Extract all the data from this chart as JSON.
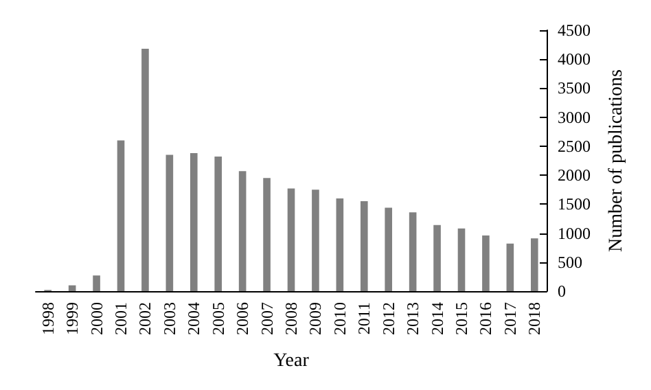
{
  "chart_data": {
    "type": "bar",
    "xlabel": "Year",
    "ylabel": "Number of publications",
    "categories": [
      "1998",
      "1999",
      "2000",
      "2001",
      "2002",
      "2003",
      "2004",
      "2005",
      "2006",
      "2007",
      "2008",
      "2009",
      "2010",
      "2011",
      "2012",
      "2013",
      "2014",
      "2015",
      "2016",
      "2017",
      "2018"
    ],
    "values": [
      20,
      100,
      270,
      2600,
      4180,
      2350,
      2380,
      2320,
      2070,
      1950,
      1770,
      1750,
      1600,
      1550,
      1440,
      1360,
      1140,
      1080,
      960,
      820,
      910
    ],
    "color": "#808080",
    "ylim": [
      0,
      4500
    ],
    "yticks": [
      0,
      500,
      1000,
      1500,
      2000,
      2500,
      3000,
      3500,
      4000,
      4500
    ],
    "grid": false
  }
}
